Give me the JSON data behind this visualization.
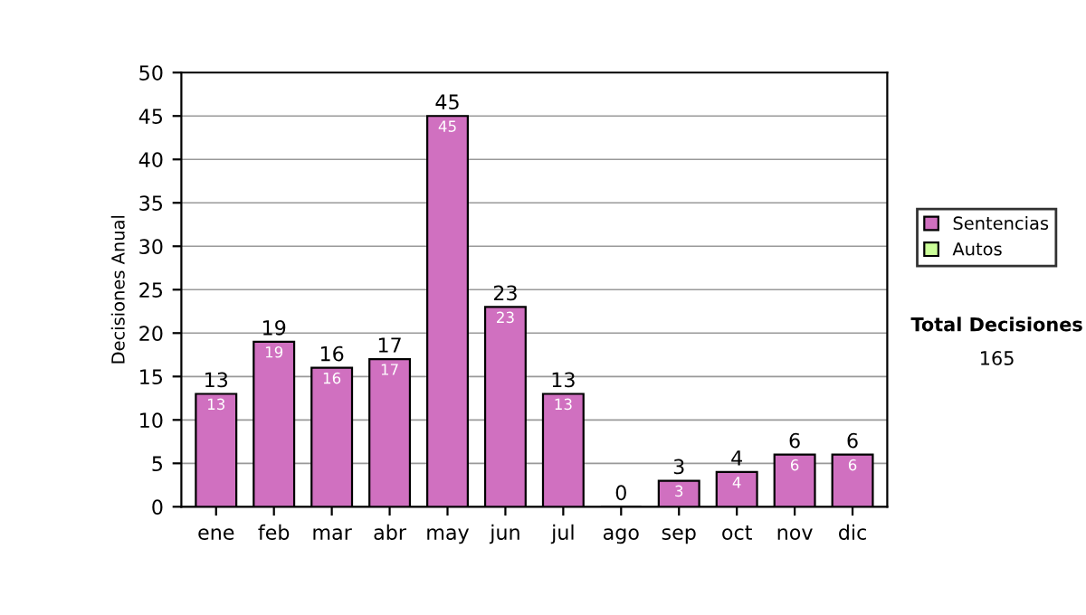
{
  "chart_data": {
    "type": "bar",
    "stacked": true,
    "ylabel": "Decisiones Anual",
    "categories": [
      "ene",
      "feb",
      "mar",
      "abr",
      "may",
      "jun",
      "jul",
      "ago",
      "sep",
      "oct",
      "nov",
      "dic"
    ],
    "series": [
      {
        "name": "Sentencias",
        "color": "#d070c0",
        "values": [
          13,
          19,
          16,
          17,
          45,
          23,
          13,
          0,
          3,
          4,
          6,
          6
        ],
        "value_labels": [
          "13",
          "19",
          "16",
          "17",
          "45",
          "23",
          "13",
          null,
          "3",
          "4",
          "6",
          "6"
        ]
      },
      {
        "name": "Autos",
        "color": "#ccff99",
        "values": [
          null,
          null,
          null,
          null,
          null,
          null,
          null,
          null,
          null,
          null,
          null,
          null
        ]
      }
    ],
    "totals": [
      "13",
      "19",
      "16",
      "17",
      "45",
      "23",
      "13",
      "0",
      "3",
      "4",
      "6",
      "6"
    ],
    "ylim": [
      0,
      50
    ],
    "yticks": [
      0,
      5,
      10,
      15,
      20,
      25,
      30,
      35,
      40,
      45,
      50
    ],
    "grid": "y",
    "legend": "right",
    "annotations": [
      "Total Decisiones",
      "165"
    ]
  }
}
